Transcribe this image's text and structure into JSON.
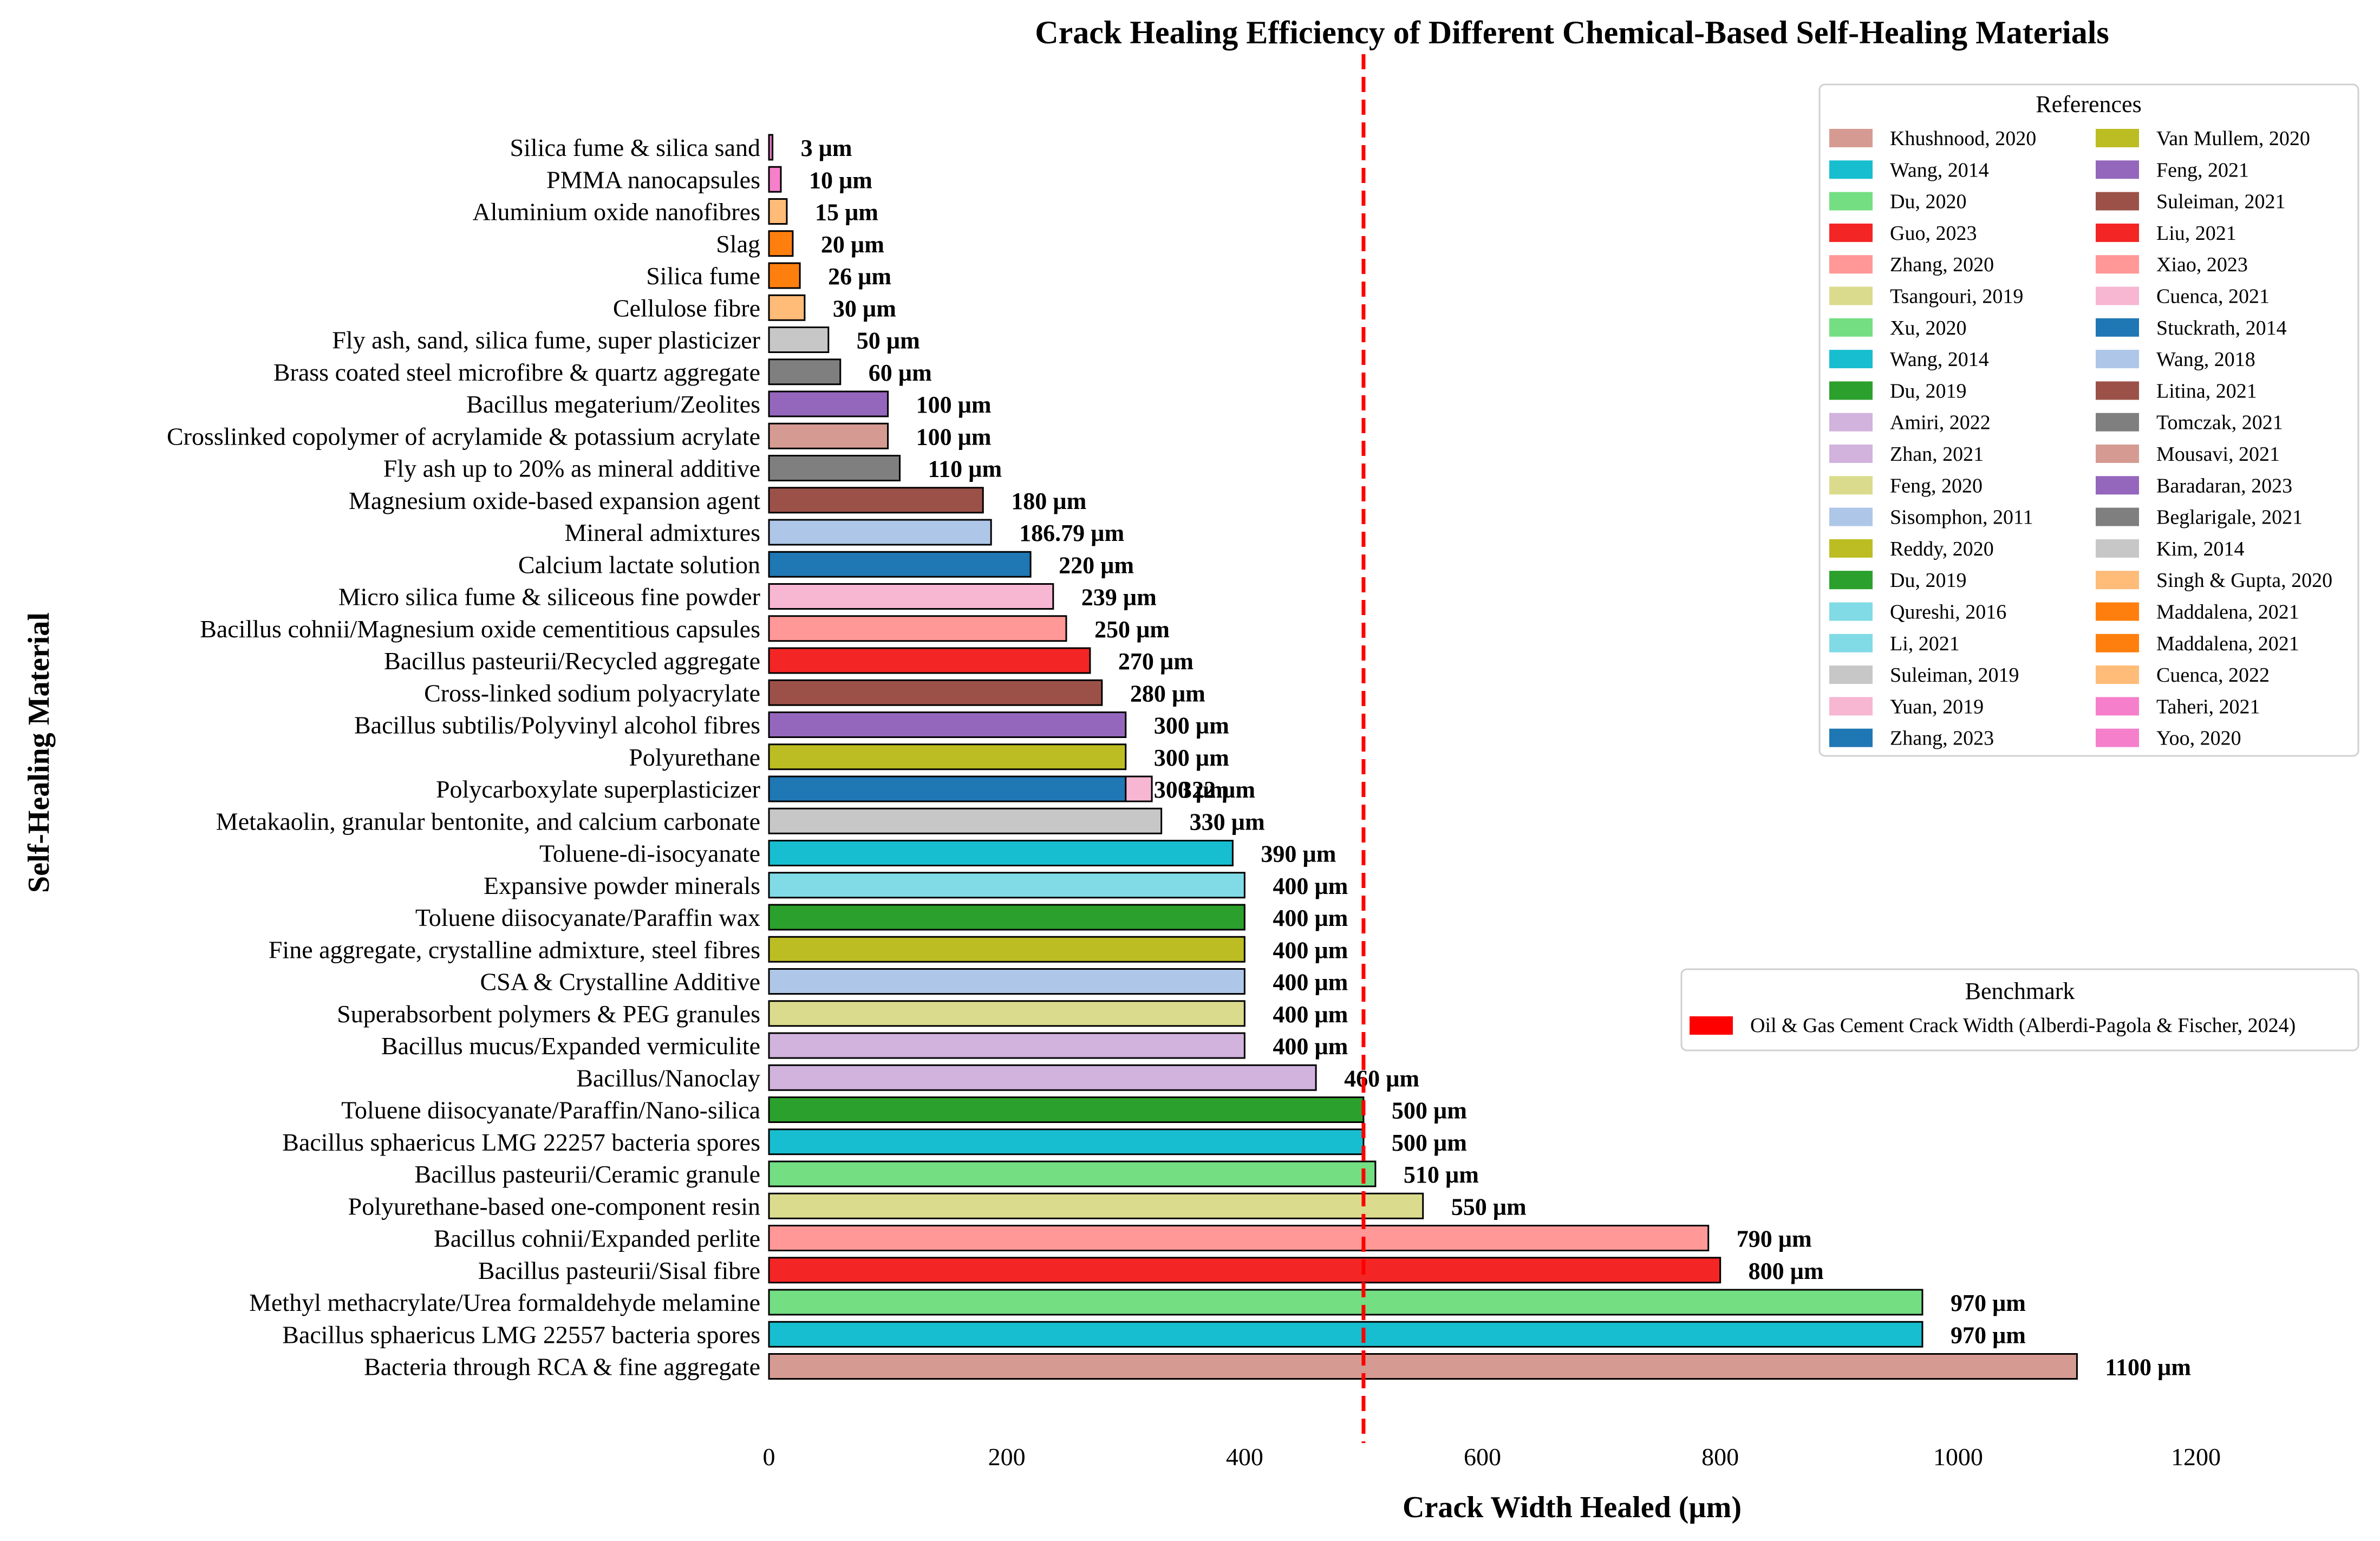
{
  "chart_data": {
    "type": "bar",
    "orientation": "horizontal",
    "title": "Crack Healing Efficiency of Different Chemical-Based Self-Healing Materials",
    "xlabel": "Crack Width Healed (µm)",
    "ylabel": "Self-Healing Material",
    "xlim": [
      0,
      1200
    ],
    "xticks": [
      "0",
      "200",
      "400",
      "600",
      "800",
      "1000",
      "1200"
    ],
    "benchmark_value": 500,
    "benchmark_color": "#ff0000",
    "bars": [
      {
        "label": "Silica fume & silica sand",
        "value": 3,
        "value_label": "3 µm",
        "color": "#e377c2"
      },
      {
        "label": "PMMA nanocapsules",
        "value": 10,
        "value_label": "10 µm",
        "color": "#f57fcb"
      },
      {
        "label": "Aluminium oxide nanofibres",
        "value": 15,
        "value_label": "15 µm",
        "color": "#ffbb78"
      },
      {
        "label": "Slag",
        "value": 20,
        "value_label": "20 µm",
        "color": "#ff7f0e"
      },
      {
        "label": "Silica fume",
        "value": 26,
        "value_label": "26 µm",
        "color": "#ff7f0e"
      },
      {
        "label": "Cellulose fibre",
        "value": 30,
        "value_label": "30 µm",
        "color": "#ffbb78"
      },
      {
        "label": "Fly ash, sand, silica fume, super plasticizer",
        "value": 50,
        "value_label": "50 µm",
        "color": "#c7c7c7"
      },
      {
        "label": "Brass coated steel microfibre & quartz aggregate",
        "value": 60,
        "value_label": "60 µm",
        "color": "#7f7f7f"
      },
      {
        "label": "Bacillus megaterium/Zeolites",
        "value": 100,
        "value_label": "100 µm",
        "color": "#9467bd"
      },
      {
        "label": "Crosslinked copolymer of acrylamide & potassium acrylate",
        "value": 100,
        "value_label": "100 µm",
        "color": "#d59b93"
      },
      {
        "label": "Fly ash up to 20% as mineral additive",
        "value": 110,
        "value_label": "110 µm",
        "color": "#7f7f7f"
      },
      {
        "label": "Magnesium oxide-based expansion agent",
        "value": 180,
        "value_label": "180 µm",
        "color": "#9c5148"
      },
      {
        "label": "Mineral admixtures",
        "value": 186.79,
        "value_label": "186.79 µm",
        "color": "#aec7e8"
      },
      {
        "label": "Calcium lactate solution",
        "value": 220,
        "value_label": "220 µm",
        "color": "#1f77b4"
      },
      {
        "label": "Micro silica fume & siliceous fine powder",
        "value": 239,
        "value_label": "239 µm",
        "color": "#f7b6d2"
      },
      {
        "label": "Bacillus cohnii/Magnesium oxide cementitious capsules",
        "value": 250,
        "value_label": "250 µm",
        "color": "#ff9896"
      },
      {
        "label": "Bacillus pasteurii/Recycled aggregate",
        "value": 270,
        "value_label": "270 µm",
        "color": "#f42525"
      },
      {
        "label": "Cross-linked sodium polyacrylate",
        "value": 280,
        "value_label": "280 µm",
        "color": "#9c5148"
      },
      {
        "label": "Bacillus subtilis/Polyvinyl alcohol fibres",
        "value": 300,
        "value_label": "300 µm",
        "color": "#9467bd"
      },
      {
        "label": "Polyurethane",
        "value": 300,
        "value_label": "300 µm",
        "color": "#bcbd22"
      },
      {
        "label": "Polycarboxylate superplasticizer",
        "value": 300,
        "value_label": "300 µm",
        "color": "#1f77b4",
        "overlay_value": 322,
        "overlay_value_label": "322 µm",
        "overlay_color": "#f7b6d2"
      },
      {
        "label": "Metakaolin, granular bentonite, and calcium carbonate",
        "value": 330,
        "value_label": "330 µm",
        "color": "#c7c7c7"
      },
      {
        "label": "Toluene-di-isocyanate",
        "value": 390,
        "value_label": "390 µm",
        "color": "#17becf"
      },
      {
        "label": "Expansive powder minerals",
        "value": 400,
        "value_label": "400 µm",
        "color": "#80dbe6"
      },
      {
        "label": "Toluene diisocyanate/Paraffin wax",
        "value": 400,
        "value_label": "400 µm",
        "color": "#2ca02c"
      },
      {
        "label": "Fine aggregate, crystalline admixture, steel fibres",
        "value": 400,
        "value_label": "400 µm",
        "color": "#bcbd22"
      },
      {
        "label": "CSA & Crystalline Additive",
        "value": 400,
        "value_label": "400 µm",
        "color": "#aec7e8"
      },
      {
        "label": "Superabsorbent polymers & PEG granules",
        "value": 400,
        "value_label": "400 µm",
        "color": "#dbdb8d"
      },
      {
        "label": "Bacillus mucus/Expanded vermiculite",
        "value": 400,
        "value_label": "400 µm",
        "color": "#d1b3dd"
      },
      {
        "label": "Bacillus/Nanoclay",
        "value": 460,
        "value_label": "460 µm",
        "color": "#d1b3dd"
      },
      {
        "label": "Toluene diisocyanate/Paraffin/Nano-silica",
        "value": 500,
        "value_label": "500 µm",
        "color": "#2ca02c"
      },
      {
        "label": "Bacillus sphaericus LMG 22257 bacteria spores",
        "value": 500,
        "value_label": "500 µm",
        "color": "#17becf"
      },
      {
        "label": "Bacillus pasteurii/Ceramic granule",
        "value": 510,
        "value_label": "510 µm",
        "color": "#74de82"
      },
      {
        "label": "Polyurethane-based one-component resin",
        "value": 550,
        "value_label": "550 µm",
        "color": "#dbdb8d"
      },
      {
        "label": "Bacillus cohnii/Expanded perlite",
        "value": 790,
        "value_label": "790 µm",
        "color": "#ff9896"
      },
      {
        "label": "Bacillus pasteurii/Sisal fibre",
        "value": 800,
        "value_label": "800 µm",
        "color": "#f42525"
      },
      {
        "label": "Methyl methacrylate/Urea formaldehyde melamine",
        "value": 970,
        "value_label": "970 µm",
        "color": "#74de82"
      },
      {
        "label": "Bacillus sphaericus LMG 22557 bacteria spores",
        "value": 970,
        "value_label": "970 µm",
        "color": "#17becf"
      },
      {
        "label": "Bacteria through RCA & fine aggregate",
        "value": 1100,
        "value_label": "1100 µm",
        "color": "#d59b93"
      }
    ],
    "legend_references": {
      "title": "References",
      "col1": [
        {
          "label": "Khushnood, 2020",
          "color": "#d59b93"
        },
        {
          "label": "Wang, 2014",
          "color": "#17becf"
        },
        {
          "label": "Du, 2020",
          "color": "#74de82"
        },
        {
          "label": "Guo, 2023",
          "color": "#f42525"
        },
        {
          "label": "Zhang, 2020",
          "color": "#ff9896"
        },
        {
          "label": "Tsangouri, 2019",
          "color": "#dbdb8d"
        },
        {
          "label": "Xu, 2020",
          "color": "#74de82"
        },
        {
          "label": "Wang, 2014",
          "color": "#17becf"
        },
        {
          "label": "Du, 2019",
          "color": "#2ca02c"
        },
        {
          "label": "Amiri, 2022",
          "color": "#d1b3dd"
        },
        {
          "label": "Zhan, 2021",
          "color": "#d1b3dd"
        },
        {
          "label": "Feng, 2020",
          "color": "#dbdb8d"
        },
        {
          "label": "Sisomphon, 2011",
          "color": "#aec7e8"
        },
        {
          "label": "Reddy, 2020",
          "color": "#bcbd22"
        },
        {
          "label": "Du, 2019",
          "color": "#2ca02c"
        },
        {
          "label": "Qureshi, 2016",
          "color": "#80dbe6"
        },
        {
          "label": "Li, 2021",
          "color": "#80dbe6"
        },
        {
          "label": "Suleiman, 2019",
          "color": "#c7c7c7"
        },
        {
          "label": "Yuan, 2019",
          "color": "#f7b6d2"
        },
        {
          "label": "Zhang, 2023",
          "color": "#1f77b4"
        }
      ],
      "col2": [
        {
          "label": "Van Mullem, 2020",
          "color": "#bcbd22"
        },
        {
          "label": "Feng, 2021",
          "color": "#9467bd"
        },
        {
          "label": "Suleiman, 2021",
          "color": "#9c5148"
        },
        {
          "label": "Liu, 2021",
          "color": "#f42525"
        },
        {
          "label": "Xiao, 2023",
          "color": "#ff9896"
        },
        {
          "label": "Cuenca, 2021",
          "color": "#f7b6d2"
        },
        {
          "label": "Stuckrath, 2014",
          "color": "#1f77b4"
        },
        {
          "label": "Wang, 2018",
          "color": "#aec7e8"
        },
        {
          "label": "Litina, 2021",
          "color": "#9c5148"
        },
        {
          "label": "Tomczak, 2021",
          "color": "#7f7f7f"
        },
        {
          "label": "Mousavi, 2021",
          "color": "#d59b93"
        },
        {
          "label": "Baradaran, 2023",
          "color": "#9467bd"
        },
        {
          "label": "Beglarigale, 2021",
          "color": "#7f7f7f"
        },
        {
          "label": "Kim, 2014",
          "color": "#c7c7c7"
        },
        {
          "label": "Singh & Gupta, 2020",
          "color": "#ffbb78"
        },
        {
          "label": "Maddalena, 2021",
          "color": "#ff7f0e"
        },
        {
          "label": "Maddalena, 2021",
          "color": "#ff7f0e"
        },
        {
          "label": "Cuenca, 2022",
          "color": "#ffbb78"
        },
        {
          "label": "Taheri, 2021",
          "color": "#f57fcb"
        },
        {
          "label": "Yoo, 2020",
          "color": "#f57fcb"
        }
      ]
    },
    "legend_benchmark": {
      "title": "Benchmark",
      "label": "Oil & Gas Cement Crack Width (Alberdi-Pagola & Fischer, 2024)",
      "color": "#ff0000"
    }
  }
}
